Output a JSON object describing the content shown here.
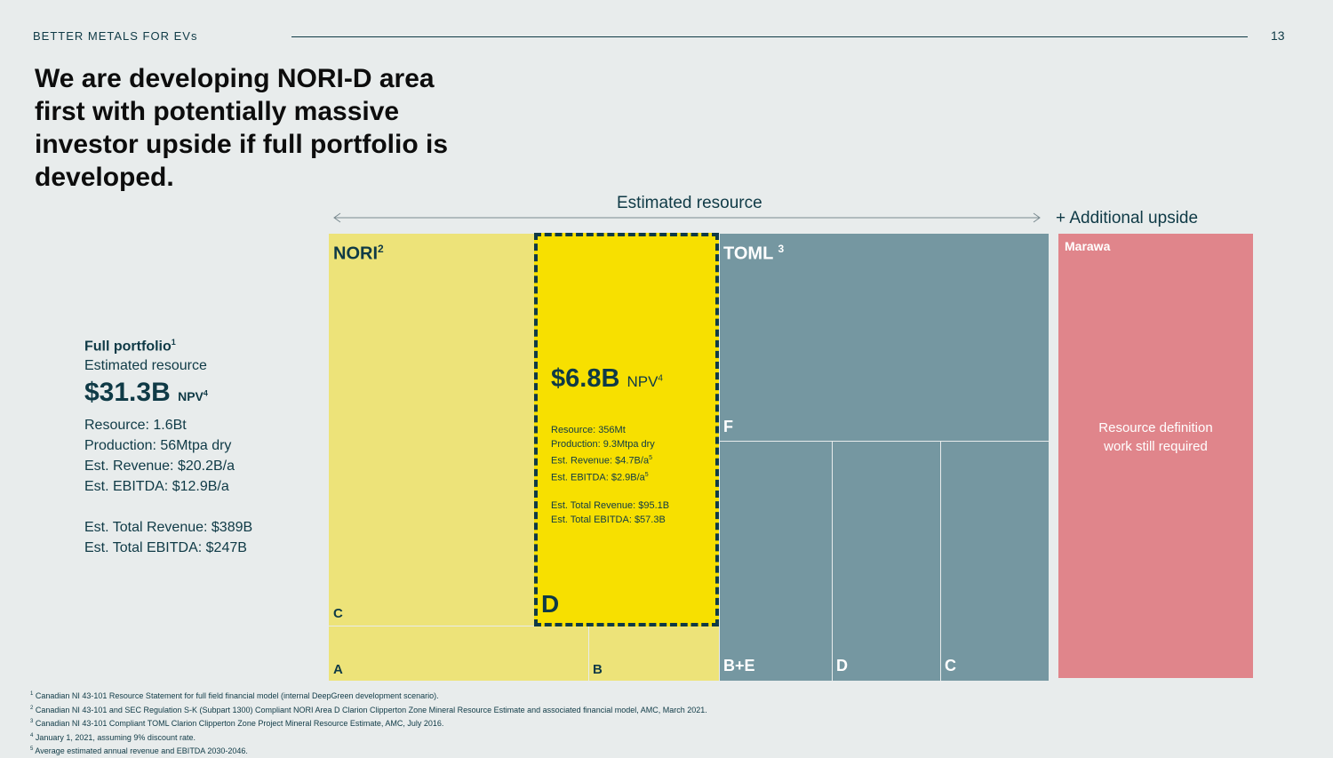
{
  "header": {
    "brand": "BETTER METALS FOR EVs",
    "page_number": "13"
  },
  "title": "We are developing NORI-D area first with potentially massive investor upside if full portfolio is developed.",
  "diagram": {
    "estimated_resource_label": "Estimated resource",
    "additional_upside_label": "+ Additional upside",
    "nori": {
      "label": "NORI",
      "label_sup": "2",
      "area_c": "C",
      "area_a": "A",
      "area_b": "B",
      "area_d": {
        "label": "D",
        "value": "$6.8B",
        "npv": "NPV",
        "npv_sup": "4",
        "resource": "Resource: 356Mt",
        "production": "Production: 9.3Mtpa dry",
        "revenue": "Est. Revenue: $4.7B/a",
        "revenue_sup": "5",
        "ebitda": "Est. EBITDA: $2.9B/a",
        "ebitda_sup": "5",
        "total_revenue": "Est. Total Revenue: $95.1B",
        "total_ebitda": "Est. Total EBITDA: $57.3B"
      }
    },
    "toml": {
      "label": "TOML",
      "label_sup": "3",
      "area_f": "F",
      "area_be": "B+E",
      "area_d": "D",
      "area_c": "C"
    },
    "marawa": {
      "label": "Marawa",
      "note_line1": "Resource definition",
      "note_line2": "work still required"
    },
    "colors": {
      "nori": "#ede379",
      "nori_d": "#f7e000",
      "toml": "#7597a1",
      "marawa": "#e0858b",
      "text": "#0f3a46"
    }
  },
  "full_portfolio": {
    "title": "Full portfolio",
    "title_sup": "1",
    "subtitle": "Estimated resource",
    "value": "$31.3B",
    "npv": "NPV",
    "npv_sup": "4",
    "resource": "Resource: 1.6Bt",
    "production": "Production: 56Mtpa dry",
    "revenue": "Est. Revenue: $20.2B/a",
    "ebitda": "Est. EBITDA: $12.9B/a",
    "total_revenue": "Est. Total Revenue: $389B",
    "total_ebitda": "Est. Total EBITDA: $247B"
  },
  "footnotes": [
    {
      "num": "1",
      "text": "Canadian NI 43-101 Resource Statement for full field financial model (internal DeepGreen development scenario)."
    },
    {
      "num": "2",
      "text": "Canadian NI 43-101 and SEC Regulation S-K (Subpart 1300) Compliant NORI Area D Clarion Clipperton Zone Mineral Resource Estimate and associated financial model, AMC, March 2021."
    },
    {
      "num": "3",
      "text": "Canadian NI 43-101 Compliant TOML Clarion Clipperton Zone Project Mineral Resource Estimate, AMC, July 2016."
    },
    {
      "num": "4",
      "text": "January 1, 2021, assuming 9% discount rate."
    },
    {
      "num": "5",
      "text": "Average estimated annual revenue and EBITDA 2030-2046."
    }
  ]
}
